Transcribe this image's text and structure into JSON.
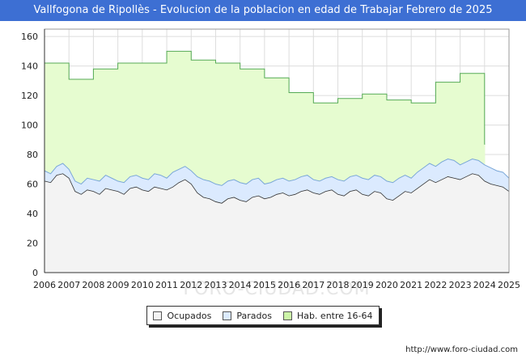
{
  "chart_data": {
    "type": "area",
    "title": "Vallfogona de Ripollès - Evolucion de la poblacion en edad de Trabajar Febrero de 2025",
    "xlabel": "",
    "ylabel": "",
    "x_ticks": [
      "2006",
      "2007",
      "2008",
      "2009",
      "2010",
      "2011",
      "2012",
      "2013",
      "2014",
      "2015",
      "2016",
      "2017",
      "2018",
      "2019",
      "2020",
      "2021",
      "2022",
      "2023",
      "2024",
      "2025"
    ],
    "y_ticks": [
      "0",
      "20",
      "40",
      "60",
      "80",
      "100",
      "120",
      "140",
      "160"
    ],
    "xlim": [
      2006,
      2025
    ],
    "ylim": [
      0,
      165
    ],
    "grid": true,
    "watermark": "FORO-CIUDAD.COM",
    "colors": {
      "ocupados": "#f3f3f3",
      "parados": "#dbeafe",
      "habitantes": "#e6fcd0",
      "hab_line": "#55aa55",
      "parados_line": "#7aa7d8",
      "ocupados_line": "#333333"
    },
    "series": [
      {
        "name": "Hab. entre 16-64",
        "note": "yearly step values",
        "years": [
          2006,
          2007,
          2008,
          2009,
          2010,
          2011,
          2012,
          2013,
          2014,
          2015,
          2016,
          2017,
          2018,
          2019,
          2020,
          2021,
          2022,
          2023,
          2024
        ],
        "values": [
          142,
          131,
          138,
          142,
          142,
          150,
          144,
          142,
          138,
          132,
          122,
          115,
          118,
          121,
          117,
          115,
          129,
          135,
          87
        ]
      },
      {
        "name": "Parados",
        "note": "ocupados + parados, quarterly",
        "x": [
          2006,
          2006.25,
          2006.5,
          2006.75,
          2007,
          2007.25,
          2007.5,
          2007.75,
          2008,
          2008.25,
          2008.5,
          2008.75,
          2009,
          2009.25,
          2009.5,
          2009.75,
          2010,
          2010.25,
          2010.5,
          2010.75,
          2011,
          2011.25,
          2011.5,
          2011.75,
          2012,
          2012.25,
          2012.5,
          2012.75,
          2013,
          2013.25,
          2013.5,
          2013.75,
          2014,
          2014.25,
          2014.5,
          2014.75,
          2015,
          2015.25,
          2015.5,
          2015.75,
          2016,
          2016.25,
          2016.5,
          2016.75,
          2017,
          2017.25,
          2017.5,
          2017.75,
          2018,
          2018.25,
          2018.5,
          2018.75,
          2019,
          2019.25,
          2019.5,
          2019.75,
          2020,
          2020.25,
          2020.5,
          2020.75,
          2021,
          2021.25,
          2021.5,
          2021.75,
          2022,
          2022.25,
          2022.5,
          2022.75,
          2023,
          2023.25,
          2023.5,
          2023.75,
          2024,
          2024.25,
          2024.5,
          2024.75,
          2025
        ],
        "values": [
          69,
          67,
          72,
          74,
          70,
          62,
          60,
          64,
          63,
          62,
          66,
          64,
          62,
          61,
          65,
          66,
          64,
          63,
          67,
          66,
          64,
          68,
          70,
          72,
          69,
          65,
          63,
          62,
          60,
          59,
          62,
          63,
          61,
          60,
          63,
          64,
          60,
          61,
          63,
          64,
          62,
          63,
          65,
          66,
          63,
          62,
          64,
          65,
          63,
          62,
          65,
          66,
          64,
          63,
          66,
          65,
          62,
          61,
          64,
          66,
          64,
          68,
          71,
          74,
          72,
          75,
          77,
          76,
          73,
          75,
          77,
          76,
          73,
          71,
          69,
          68,
          64
        ]
      },
      {
        "name": "Ocupados",
        "x": [
          2006,
          2006.25,
          2006.5,
          2006.75,
          2007,
          2007.25,
          2007.5,
          2007.75,
          2008,
          2008.25,
          2008.5,
          2008.75,
          2009,
          2009.25,
          2009.5,
          2009.75,
          2010,
          2010.25,
          2010.5,
          2010.75,
          2011,
          2011.25,
          2011.5,
          2011.75,
          2012,
          2012.25,
          2012.5,
          2012.75,
          2013,
          2013.25,
          2013.5,
          2013.75,
          2014,
          2014.25,
          2014.5,
          2014.75,
          2015,
          2015.25,
          2015.5,
          2015.75,
          2016,
          2016.25,
          2016.5,
          2016.75,
          2017,
          2017.25,
          2017.5,
          2017.75,
          2018,
          2018.25,
          2018.5,
          2018.75,
          2019,
          2019.25,
          2019.5,
          2019.75,
          2020,
          2020.25,
          2020.5,
          2020.75,
          2021,
          2021.25,
          2021.5,
          2021.75,
          2022,
          2022.25,
          2022.5,
          2022.75,
          2023,
          2023.25,
          2023.5,
          2023.75,
          2024,
          2024.25,
          2024.5,
          2024.75,
          2025
        ],
        "values": [
          62,
          61,
          66,
          67,
          64,
          55,
          53,
          56,
          55,
          53,
          57,
          56,
          55,
          53,
          57,
          58,
          56,
          55,
          58,
          57,
          56,
          58,
          61,
          63,
          60,
          54,
          51,
          50,
          48,
          47,
          50,
          51,
          49,
          48,
          51,
          52,
          50,
          51,
          53,
          54,
          52,
          53,
          55,
          56,
          54,
          53,
          55,
          56,
          53,
          52,
          55,
          56,
          53,
          52,
          55,
          54,
          50,
          49,
          52,
          55,
          54,
          57,
          60,
          63,
          61,
          63,
          65,
          64,
          63,
          65,
          67,
          66,
          62,
          60,
          59,
          58,
          55
        ]
      }
    ]
  },
  "legend": {
    "items": [
      {
        "label": "Ocupados",
        "color": "#f3f3f3"
      },
      {
        "label": "Parados",
        "color": "#dbeafe"
      },
      {
        "label": "Hab. entre 16-64",
        "color": "#ccf5a8"
      }
    ]
  },
  "footer": {
    "url": "http://www.foro-ciudad.com"
  }
}
